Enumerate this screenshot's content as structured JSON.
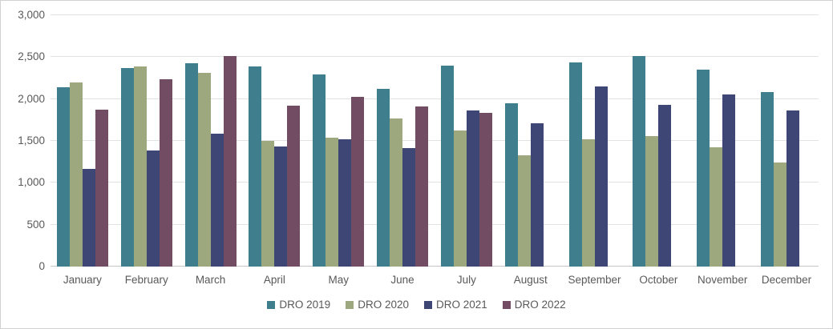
{
  "chart_data": {
    "type": "bar",
    "title": "",
    "xlabel": "",
    "ylabel": "",
    "categories": [
      "January",
      "February",
      "March",
      "April",
      "May",
      "June",
      "July",
      "August",
      "September",
      "October",
      "November",
      "December"
    ],
    "series": [
      {
        "name": "DRO 2019",
        "color": "#3f7e8c",
        "values": [
          2140,
          2370,
          2430,
          2390,
          2290,
          2120,
          2400,
          1950,
          2440,
          2510,
          2350,
          2080
        ]
      },
      {
        "name": "DRO 2020",
        "color": "#9da87e",
        "values": [
          2200,
          2390,
          2310,
          1500,
          1540,
          1770,
          1620,
          1330,
          1520,
          1560,
          1420,
          1240
        ]
      },
      {
        "name": "DRO 2021",
        "color": "#3d4674",
        "values": [
          1170,
          1390,
          1590,
          1430,
          1520,
          1410,
          1860,
          1710,
          2150,
          1930,
          2050,
          1860
        ]
      },
      {
        "name": "DRO 2022",
        "color": "#714c63",
        "values": [
          1870,
          2240,
          2510,
          1920,
          2030,
          1910,
          1830,
          null,
          null,
          null,
          null,
          null
        ]
      }
    ],
    "ylim": [
      0,
      3000
    ],
    "yticks": [
      {
        "value": 0,
        "label": "0"
      },
      {
        "value": 500,
        "label": "500"
      },
      {
        "value": 1000,
        "label": "1,000"
      },
      {
        "value": 1500,
        "label": "1,500"
      },
      {
        "value": 2000,
        "label": "2,000"
      },
      {
        "value": 2500,
        "label": "2,500"
      },
      {
        "value": 3000,
        "label": "3,000"
      }
    ],
    "grid": "horizontal",
    "legend_position": "bottom"
  },
  "colors": {
    "axis_text": "#595959",
    "gridline": "#e2e2e2",
    "axis_line": "#c6c6c6",
    "background": "#ffffff",
    "border": "#d2d2d2"
  }
}
